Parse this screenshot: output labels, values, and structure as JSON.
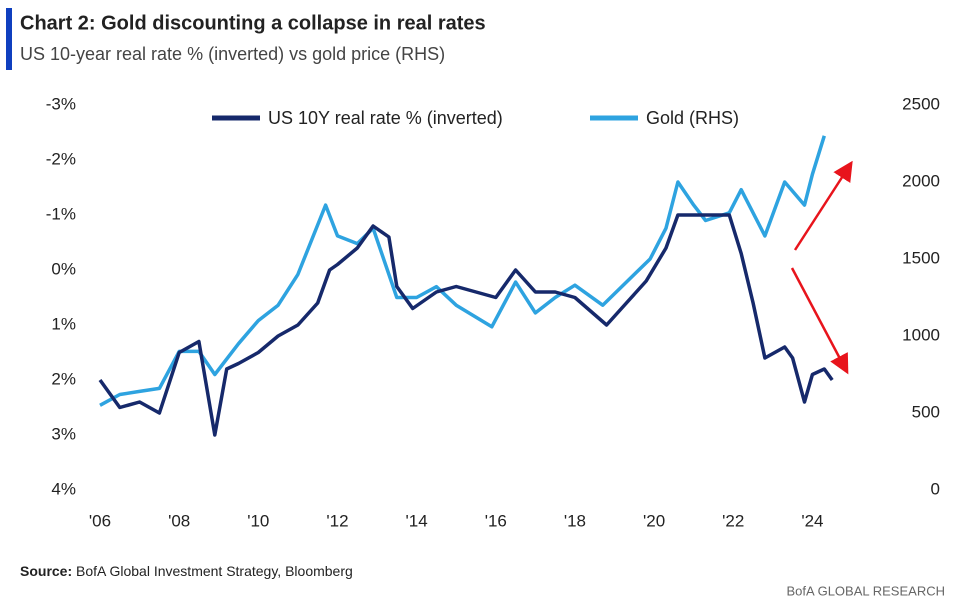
{
  "header": {
    "title": "Chart 2: Gold discounting a collapse in real rates",
    "subtitle": "US 10-year real rate % (inverted) vs gold price (RHS)"
  },
  "chart_data": {
    "type": "line",
    "xlim": [
      2006,
      2025
    ],
    "xticks": [
      {
        "value": 2006,
        "label": "'06"
      },
      {
        "value": 2008,
        "label": "'08"
      },
      {
        "value": 2010,
        "label": "'10"
      },
      {
        "value": 2012,
        "label": "'12"
      },
      {
        "value": 2014,
        "label": "'14"
      },
      {
        "value": 2016,
        "label": "'16"
      },
      {
        "value": 2018,
        "label": "'18"
      },
      {
        "value": 2020,
        "label": "'20"
      },
      {
        "value": 2022,
        "label": "'22"
      },
      {
        "value": 2024,
        "label": "'24"
      }
    ],
    "ylim": [
      -3,
      4
    ],
    "y_inverted": true,
    "yticks": [
      {
        "value": -3,
        "label": "-3%"
      },
      {
        "value": -2,
        "label": "-2%"
      },
      {
        "value": -1,
        "label": "-1%"
      },
      {
        "value": 0,
        "label": "0%"
      },
      {
        "value": 1,
        "label": "1%"
      },
      {
        "value": 2,
        "label": "2%"
      },
      {
        "value": 3,
        "label": "3%"
      },
      {
        "value": 4,
        "label": "4%"
      }
    ],
    "y2lim": [
      0,
      2500
    ],
    "y2ticks": [
      0,
      500,
      1000,
      1500,
      2000,
      2500
    ],
    "series": [
      {
        "name": "US 10Y real rate % (inverted)",
        "color": "#16296b",
        "x": [
          2006.0,
          2006.5,
          2007.0,
          2007.5,
          2008.0,
          2008.5,
          2008.9,
          2009.2,
          2009.5,
          2010.0,
          2010.5,
          2011.0,
          2011.5,
          2011.8,
          2012.0,
          2012.5,
          2012.9,
          2013.3,
          2013.5,
          2013.9,
          2014.5,
          2015.0,
          2015.5,
          2016.0,
          2016.5,
          2017.0,
          2017.5,
          2018.0,
          2018.8,
          2019.3,
          2019.8,
          2020.3,
          2020.6,
          2021.0,
          2021.5,
          2021.9,
          2022.2,
          2022.5,
          2022.8,
          2023.3,
          2023.5,
          2023.8,
          2024.0,
          2024.3,
          2024.5
        ],
        "values": [
          2.0,
          2.5,
          2.4,
          2.6,
          1.5,
          1.3,
          3.0,
          1.8,
          1.7,
          1.5,
          1.2,
          1.0,
          0.6,
          0.0,
          -0.1,
          -0.4,
          -0.8,
          -0.6,
          0.3,
          0.7,
          0.4,
          0.3,
          0.4,
          0.5,
          0.0,
          0.4,
          0.4,
          0.5,
          1.0,
          0.6,
          0.2,
          -0.4,
          -1.0,
          -1.0,
          -1.0,
          -1.0,
          -0.3,
          0.6,
          1.6,
          1.4,
          1.6,
          2.4,
          1.9,
          1.8,
          2.0
        ]
      },
      {
        "name": "Gold (RHS)",
        "color": "#2ea3e0",
        "axis": "y2",
        "x": [
          2006.0,
          2006.5,
          2007.0,
          2007.5,
          2008.0,
          2008.5,
          2008.9,
          2009.5,
          2010.0,
          2010.5,
          2011.0,
          2011.7,
          2012.0,
          2012.5,
          2012.9,
          2013.5,
          2014.0,
          2014.5,
          2015.0,
          2015.9,
          2016.5,
          2017.0,
          2017.5,
          2018.0,
          2018.7,
          2019.5,
          2019.9,
          2020.3,
          2020.6,
          2021.0,
          2021.3,
          2021.9,
          2022.2,
          2022.8,
          2023.3,
          2023.8,
          2024.0,
          2024.3
        ],
        "values": [
          550,
          620,
          640,
          660,
          900,
          900,
          750,
          950,
          1100,
          1200,
          1400,
          1850,
          1650,
          1600,
          1700,
          1250,
          1250,
          1320,
          1200,
          1060,
          1350,
          1150,
          1250,
          1330,
          1200,
          1400,
          1500,
          1700,
          2000,
          1850,
          1750,
          1800,
          1950,
          1650,
          2000,
          1850,
          2050,
          2300
        ]
      }
    ]
  },
  "footer": {
    "source_label": "Source:",
    "source": "BofA Global Investment Strategy, Bloomberg",
    "brand": "BofA GLOBAL RESEARCH"
  }
}
